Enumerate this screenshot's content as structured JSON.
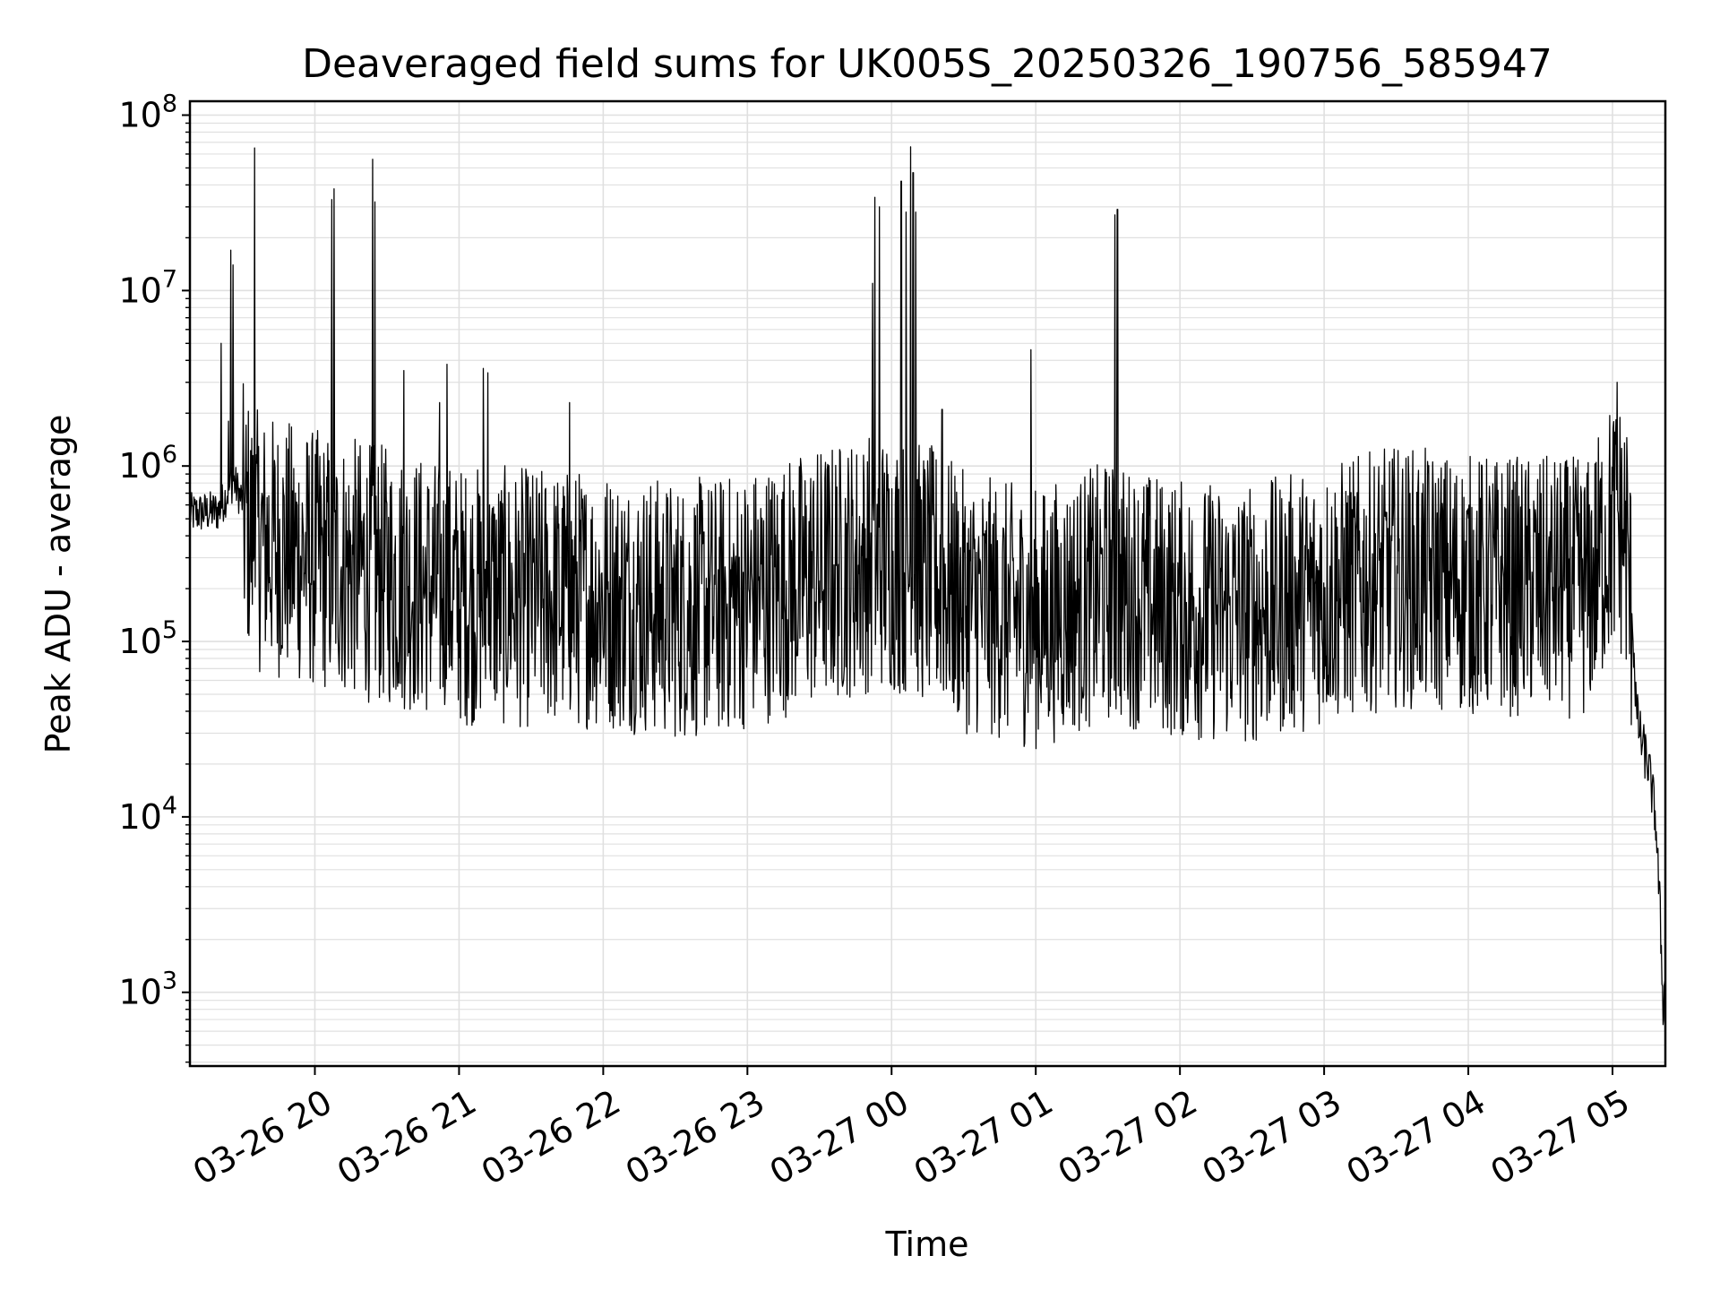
{
  "chart_data": {
    "type": "line",
    "title": "Deaveraged field sums for UK005S_20250326_190756_585947",
    "xlabel": "Time",
    "ylabel": "Peak ADU - average",
    "yscale": "log",
    "ylim": [
      380,
      120000000
    ],
    "xlim": [
      "2025-03-26 19:08",
      "2025-03-27 05:22"
    ],
    "grid": true,
    "line_color": "#000000",
    "grid_color": "#e0e0e0",
    "x_ticks": [
      {
        "label": "03-26 20",
        "value": "2025-03-26 20:00"
      },
      {
        "label": "03-26 21",
        "value": "2025-03-26 21:00"
      },
      {
        "label": "03-26 22",
        "value": "2025-03-26 22:00"
      },
      {
        "label": "03-26 23",
        "value": "2025-03-26 23:00"
      },
      {
        "label": "03-27 00",
        "value": "2025-03-27 00:00"
      },
      {
        "label": "03-27 01",
        "value": "2025-03-27 01:00"
      },
      {
        "label": "03-27 02",
        "value": "2025-03-27 02:00"
      },
      {
        "label": "03-27 03",
        "value": "2025-03-27 03:00"
      },
      {
        "label": "03-27 04",
        "value": "2025-03-27 04:00"
      },
      {
        "label": "03-27 05",
        "value": "2025-03-27 05:00"
      }
    ],
    "y_ticks": [
      {
        "base": "10",
        "exp": "3",
        "value": 1000
      },
      {
        "base": "10",
        "exp": "4",
        "value": 10000
      },
      {
        "base": "10",
        "exp": "5",
        "value": 100000
      },
      {
        "base": "10",
        "exp": "6",
        "value": 1000000
      },
      {
        "base": "10",
        "exp": "7",
        "value": 10000000
      },
      {
        "base": "10",
        "exp": "8",
        "value": 100000000
      }
    ],
    "baseline": [
      [
        "2025-03-26 19:08",
        550000
      ],
      [
        "2025-03-26 19:20",
        570000
      ],
      [
        "2025-03-26 19:26",
        850000
      ],
      [
        "2025-03-26 19:35",
        450000
      ],
      [
        "2025-03-26 20:00",
        350000
      ],
      [
        "2025-03-26 20:30",
        280000
      ],
      [
        "2025-03-26 21:00",
        220000
      ],
      [
        "2025-03-26 21:30",
        210000
      ],
      [
        "2025-03-26 22:00",
        210000
      ],
      [
        "2025-03-26 22:30",
        180000
      ],
      [
        "2025-03-26 22:50",
        190000
      ],
      [
        "2025-03-26 23:30",
        280000
      ],
      [
        "2025-03-26 23:55",
        350000
      ],
      [
        "2025-03-27 00:20",
        270000
      ],
      [
        "2025-03-27 00:30",
        200000
      ],
      [
        "2025-03-27 01:00",
        160000
      ],
      [
        "2025-03-27 01:30",
        230000
      ],
      [
        "2025-03-27 02:00",
        180000
      ],
      [
        "2025-03-27 02:30",
        170000
      ],
      [
        "2025-03-27 03:00",
        220000
      ],
      [
        "2025-03-27 03:30",
        280000
      ],
      [
        "2025-03-27 04:00",
        250000
      ],
      [
        "2025-03-27 04:50",
        240000
      ],
      [
        "2025-03-27 05:00",
        550000
      ],
      [
        "2025-03-27 05:05",
        500000
      ],
      [
        "2025-03-27 05:08",
        170000
      ],
      [
        "2025-03-27 05:10",
        40000
      ],
      [
        "2025-03-27 05:12",
        28000
      ],
      [
        "2025-03-27 05:15",
        20000
      ],
      [
        "2025-03-27 05:18",
        10000
      ],
      [
        "2025-03-27 05:20",
        2500
      ],
      [
        "2025-03-27 05:21",
        900
      ],
      [
        "2025-03-27 05:22",
        1100
      ]
    ],
    "spikes": [
      [
        "2025-03-26 19:21",
        5000000
      ],
      [
        "2025-03-26 19:24",
        1800000
      ],
      [
        "2025-03-26 19:25",
        17000000
      ],
      [
        "2025-03-26 19:26",
        14000000
      ],
      [
        "2025-03-26 19:35",
        65000000
      ],
      [
        "2025-03-26 20:07",
        33000000
      ],
      [
        "2025-03-26 20:08",
        38000000
      ],
      [
        "2025-03-26 20:24",
        56000000
      ],
      [
        "2025-03-26 20:25",
        32000000
      ],
      [
        "2025-03-26 20:37",
        3500000
      ],
      [
        "2025-03-26 20:52",
        2300000
      ],
      [
        "2025-03-26 20:55",
        3800000
      ],
      [
        "2025-03-26 21:10",
        3600000
      ],
      [
        "2025-03-26 21:12",
        3400000
      ],
      [
        "2025-03-26 21:46",
        2300000
      ],
      [
        "2025-03-26 23:52",
        11000000
      ],
      [
        "2025-03-26 23:53",
        34000000
      ],
      [
        "2025-03-26 23:55",
        30000000
      ],
      [
        "2025-03-27 00:04",
        42000000
      ],
      [
        "2025-03-27 00:06",
        28000000
      ],
      [
        "2025-03-27 00:08",
        66000000
      ],
      [
        "2025-03-27 00:09",
        47000000
      ],
      [
        "2025-03-27 00:10",
        28000000
      ],
      [
        "2025-03-27 00:21",
        2100000
      ],
      [
        "2025-03-27 00:58",
        4600000
      ],
      [
        "2025-03-27 01:33",
        27000000
      ],
      [
        "2025-03-27 01:34",
        29000000
      ],
      [
        "2025-03-27 05:02",
        3000000
      ],
      [
        "2025-03-27 05:06",
        1450000
      ]
    ]
  }
}
